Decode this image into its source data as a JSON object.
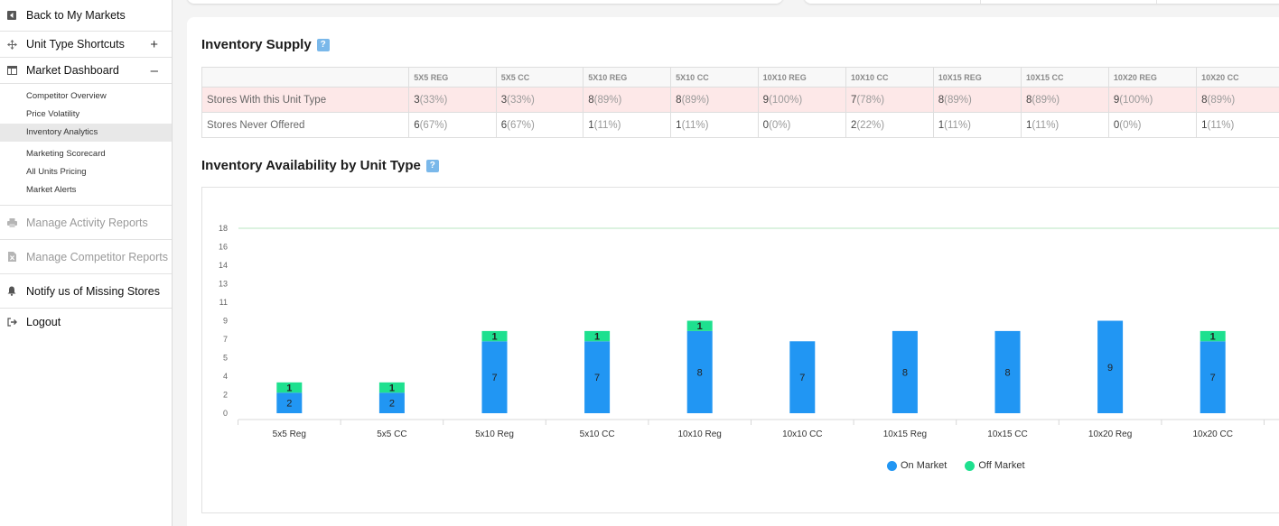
{
  "sidebar": {
    "back": "Back to My Markets",
    "shortcuts": "Unit Type Shortcuts",
    "shortcuts_toggle": "+",
    "dashboard": "Market Dashboard",
    "dashboard_toggle": "–",
    "sub_items": [
      "Competitor Overview",
      "Price Volatility",
      "Inventory Analytics",
      "Marketing Scorecard",
      "All Units Pricing",
      "Market Alerts"
    ],
    "activity": "Manage Activity Reports",
    "competitor": "Manage Competitor Reports",
    "notify": "Notify us of Missing Stores",
    "logout": "Logout"
  },
  "supply": {
    "title": "Inventory Supply",
    "help": "?",
    "columns": [
      "5X5 REG",
      "5X5 CC",
      "5X10 REG",
      "5X10 CC",
      "10X10 REG",
      "10X10 CC",
      "10X15 REG",
      "10X15 CC",
      "10X20 REG",
      "10X20 CC"
    ],
    "rows": [
      {
        "label": "Stores With this Unit Type",
        "values": [
          "3",
          "3",
          "8",
          "8",
          "9",
          "7",
          "8",
          "8",
          "9",
          "8"
        ],
        "pcts": [
          "(33%)",
          "(33%)",
          "(89%)",
          "(89%)",
          "(100%)",
          "(78%)",
          "(89%)",
          "(89%)",
          "(100%)",
          "(89%)"
        ]
      },
      {
        "label": "Stores Never Offered",
        "values": [
          "6",
          "6",
          "1",
          "1",
          "0",
          "2",
          "1",
          "1",
          "0",
          "1"
        ],
        "pcts": [
          "(67%)",
          "(67%)",
          "(11%)",
          "(11%)",
          "(0%)",
          "(22%)",
          "(11%)",
          "(11%)",
          "(0%)",
          "(11%)"
        ]
      }
    ]
  },
  "availability": {
    "title": "Inventory Availability by Unit Type",
    "help": "?"
  },
  "chart_data": {
    "type": "bar",
    "stacked": true,
    "categories": [
      "5x5 Reg",
      "5x5 CC",
      "5x10 Reg",
      "5x10 CC",
      "10x10 Reg",
      "10x10 CC",
      "10x15 Reg",
      "10x15 CC",
      "10x20 Reg",
      "10x20 CC"
    ],
    "series": [
      {
        "name": "On Market",
        "color": "#2196f3",
        "values": [
          2,
          2,
          7,
          7,
          8,
          7,
          8,
          8,
          9,
          7
        ]
      },
      {
        "name": "Off Market",
        "color": "#1ee08f",
        "values": [
          1,
          1,
          1,
          1,
          1,
          0,
          0,
          0,
          0,
          1
        ]
      }
    ],
    "yticks": [
      "0",
      "2",
      "4",
      "5",
      "7",
      "9",
      "11",
      "13",
      "14",
      "16",
      "18"
    ],
    "ylim": [
      0,
      18
    ],
    "reference_line": 18,
    "legend_position": "bottom"
  }
}
